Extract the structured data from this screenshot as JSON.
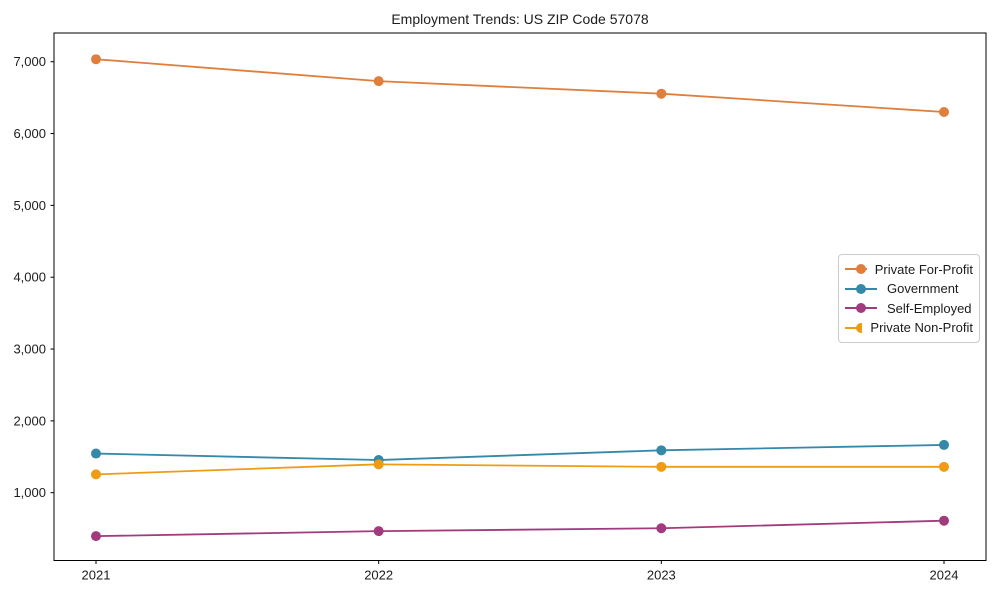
{
  "chart_data": {
    "type": "line",
    "title": "Employment Trends: US ZIP Code 57078",
    "categories": [
      "2021",
      "2022",
      "2023",
      "2024"
    ],
    "series": [
      {
        "name": "Private For-Profit",
        "color": "#e07e3c",
        "values": [
          7035,
          6730,
          6555,
          6300
        ]
      },
      {
        "name": "Government",
        "color": "#3489a8",
        "values": [
          1545,
          1455,
          1590,
          1665
        ]
      },
      {
        "name": "Self-Employed",
        "color": "#a23b7e",
        "values": [
          395,
          465,
          505,
          610
        ]
      },
      {
        "name": "Private Non-Profit",
        "color": "#f09c13",
        "values": [
          1255,
          1395,
          1360,
          1360
        ]
      }
    ],
    "xlabel": "",
    "ylabel": "",
    "ylim": [
      56,
      7400
    ],
    "yticks": [
      1000,
      2000,
      3000,
      4000,
      5000,
      6000,
      7000
    ],
    "ytick_labels": [
      "1,000",
      "2,000",
      "3,000",
      "4,000",
      "5,000",
      "6,000",
      "7,000"
    ],
    "grid": false,
    "legend_position": "center-right",
    "marker": "circle",
    "axis_color": "#000000",
    "text_color": "#1c1c1c"
  }
}
